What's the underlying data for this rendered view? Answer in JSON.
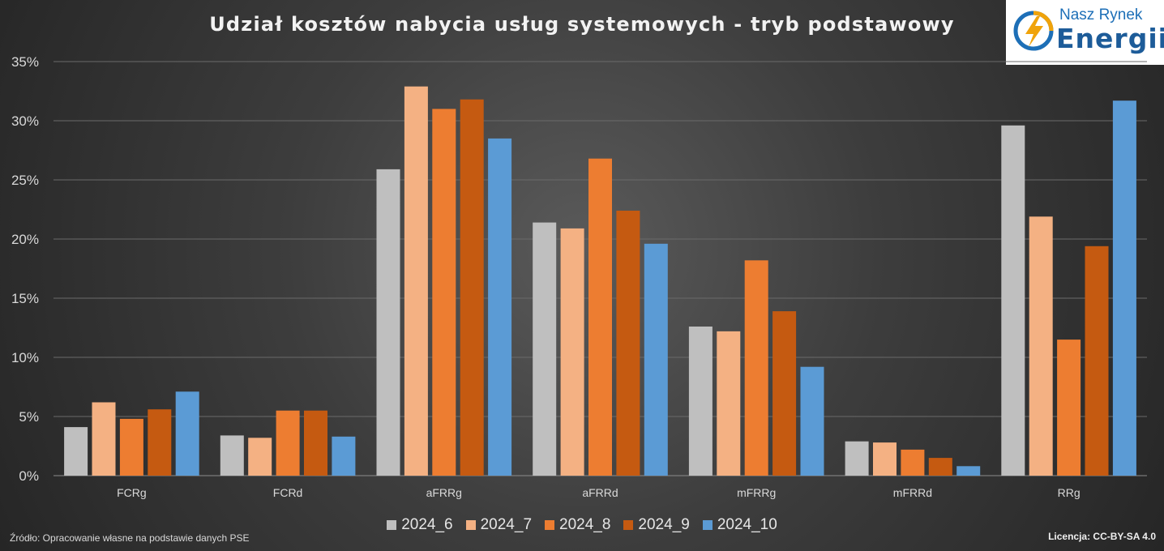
{
  "chart_data": {
    "type": "bar",
    "title": "Udział kosztów nabycia usług systemowych - tryb podstawowy",
    "categories": [
      "FCRg",
      "FCRd",
      "aFRRg",
      "aFRRd",
      "mFRRg",
      "mFRRd",
      "RRg"
    ],
    "series": [
      {
        "name": "2024_6",
        "color": "#bfbfbf",
        "values": [
          4.1,
          3.4,
          25.9,
          21.4,
          12.6,
          2.9,
          29.6
        ]
      },
      {
        "name": "2024_7",
        "color": "#f4b183",
        "values": [
          6.2,
          3.2,
          32.9,
          20.9,
          12.2,
          2.8,
          21.9
        ]
      },
      {
        "name": "2024_8",
        "color": "#ed7d31",
        "values": [
          4.8,
          5.5,
          31.0,
          26.8,
          18.2,
          2.2,
          11.5
        ]
      },
      {
        "name": "2024_9",
        "color": "#c55a11",
        "values": [
          5.6,
          5.5,
          31.8,
          22.4,
          13.9,
          1.5,
          19.4
        ]
      },
      {
        "name": "2024_10",
        "color": "#5b9bd5",
        "values": [
          7.1,
          3.3,
          28.5,
          19.6,
          9.2,
          0.8,
          31.7
        ]
      }
    ],
    "ylim": [
      0,
      35
    ],
    "yticks": [
      "0%",
      "5%",
      "10%",
      "15%",
      "20%",
      "25%",
      "30%",
      "35%"
    ],
    "ytick_values": [
      0,
      5,
      10,
      15,
      20,
      25,
      30,
      35
    ],
    "grid": true,
    "legend_position": "bottom"
  },
  "logo": {
    "line1": "Nasz Rynek",
    "line2": "Energii"
  },
  "footer": {
    "source": "Źródło: Opracowanie własne na podstawie danych PSE",
    "license": "Licencja: CC-BY-SA 4.0"
  },
  "colors": {
    "text": "#d9d9d9",
    "grid": "#6a6a6a",
    "axis": "#8c8c8c"
  }
}
